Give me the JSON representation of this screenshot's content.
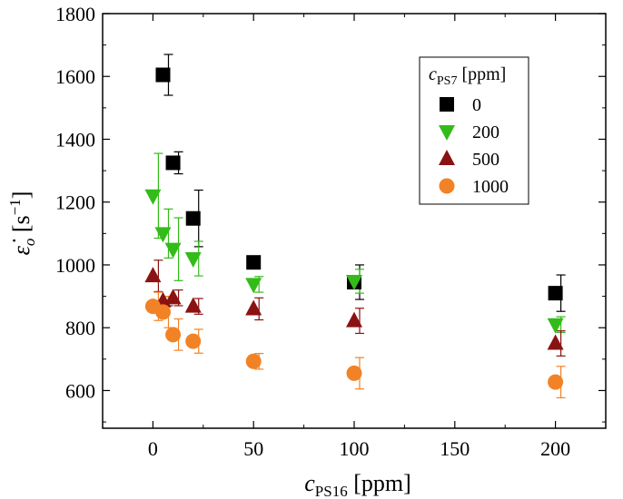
{
  "chart_data": {
    "type": "scatter",
    "xlabel_main": "c",
    "xlabel_sub": "PS16",
    "xlabel_unit": " [ppm]",
    "ylabel_main": "ε̇",
    "ylabel_sub": "o",
    "ylabel_unit_open": " [s",
    "ylabel_unit_sup": "−1",
    "ylabel_unit_close": "]",
    "xlim": [
      -25,
      225
    ],
    "ylim": [
      480,
      1800
    ],
    "x_ticks": [
      0,
      50,
      100,
      150,
      200
    ],
    "x_tick_labels": [
      "0",
      "50",
      "100",
      "150",
      "200"
    ],
    "y_ticks": [
      600,
      800,
      1000,
      1200,
      1400,
      1600,
      1800
    ],
    "y_tick_labels": [
      "600",
      "800",
      "1000",
      "1200",
      "1400",
      "1600",
      "1800"
    ],
    "legend": {
      "title_main": "c",
      "title_sub": "PS7",
      "title_unit": " [ppm]",
      "placement": "top-right"
    },
    "series": [
      {
        "name": "0",
        "marker": "square",
        "color": "#000000",
        "points": [
          {
            "x": 5,
            "y": 1605,
            "err": 65
          },
          {
            "x": 10,
            "y": 1325,
            "err": 35
          },
          {
            "x": 20,
            "y": 1148,
            "err": 90
          },
          {
            "x": 50,
            "y": 1008,
            "err": 0
          },
          {
            "x": 100,
            "y": 945,
            "err": 55
          },
          {
            "x": 200,
            "y": 910,
            "err": 58
          }
        ]
      },
      {
        "name": "200",
        "marker": "triangle-down",
        "color": "#33bb1a",
        "points": [
          {
            "x": 0,
            "y": 1220,
            "err": 135
          },
          {
            "x": 5,
            "y": 1100,
            "err": 78
          },
          {
            "x": 10,
            "y": 1050,
            "err": 100
          },
          {
            "x": 20,
            "y": 1020,
            "err": 55
          },
          {
            "x": 50,
            "y": 938,
            "err": 25
          },
          {
            "x": 100,
            "y": 948,
            "err": 38
          },
          {
            "x": 200,
            "y": 810,
            "err": 25
          }
        ]
      },
      {
        "name": "500",
        "marker": "triangle-up",
        "color": "#8b1212",
        "points": [
          {
            "x": 0,
            "y": 965,
            "err": 50
          },
          {
            "x": 5,
            "y": 885,
            "err": 15
          },
          {
            "x": 10,
            "y": 895,
            "err": 25
          },
          {
            "x": 20,
            "y": 868,
            "err": 25
          },
          {
            "x": 50,
            "y": 860,
            "err": 35
          },
          {
            "x": 100,
            "y": 822,
            "err": 40
          },
          {
            "x": 200,
            "y": 750,
            "err": 40
          }
        ]
      },
      {
        "name": "1000",
        "marker": "circle",
        "color": "#f28226",
        "points": [
          {
            "x": 0,
            "y": 868,
            "err": 45
          },
          {
            "x": 5,
            "y": 850,
            "err": 50
          },
          {
            "x": 10,
            "y": 778,
            "err": 50
          },
          {
            "x": 20,
            "y": 757,
            "err": 38
          },
          {
            "x": 50,
            "y": 693,
            "err": 25
          },
          {
            "x": 100,
            "y": 655,
            "err": 50
          },
          {
            "x": 200,
            "y": 627,
            "err": 50
          }
        ]
      }
    ]
  }
}
